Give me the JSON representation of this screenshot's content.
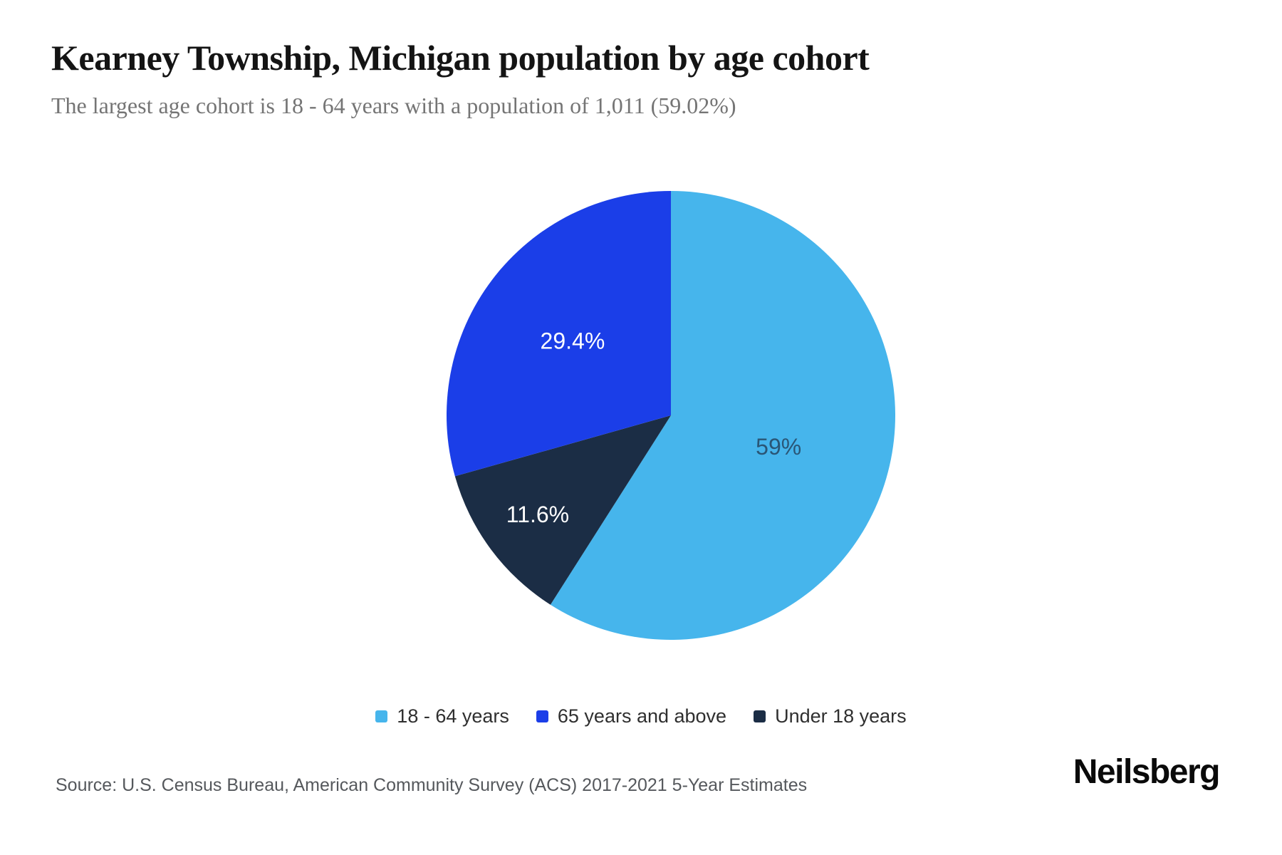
{
  "header": {
    "title": "Kearney Township, Michigan population by age cohort",
    "subtitle": "The largest age cohort is 18 - 64 years with a population of 1,011 (59.02%)"
  },
  "chart_data": {
    "type": "pie",
    "title": "Kearney Township, Michigan population by age cohort",
    "subtitle": "The largest age cohort is 18 - 64 years with a population of 1,011 (59.02%)",
    "start_angle_deg": 0,
    "direction": "clockwise",
    "slices": [
      {
        "label": "18 - 64 years",
        "value_pct": 59.02,
        "display": "59%",
        "color": "#46B5EC",
        "label_color": "#2A5676",
        "label_r": 0.5
      },
      {
        "label": "Under 18 years",
        "value_pct": 11.61,
        "display": "11.6%",
        "color": "#1B2D45",
        "label_color": "#FFFFFF",
        "label_r": 0.74
      },
      {
        "label": "65 years and above",
        "value_pct": 29.37,
        "display": "29.4%",
        "color": "#1B3EE8",
        "label_color": "#FFFFFF",
        "label_r": 0.55
      }
    ],
    "legend_position": "bottom",
    "legend": [
      {
        "label": "18 - 64 years",
        "color": "#46B5EC"
      },
      {
        "label": "65 years and above",
        "color": "#1B3EE8"
      },
      {
        "label": "Under 18 years",
        "color": "#1B2D45"
      }
    ]
  },
  "footer": {
    "source": "Source: U.S. Census Bureau, American Community Survey (ACS) 2017-2021 5-Year Estimates",
    "brand": "Neilsberg"
  },
  "colors": {
    "background": "#FFFFFF",
    "title": "#141414",
    "subtitle": "#757575",
    "legend_text": "#2F2F2F",
    "source": "#55585C"
  }
}
